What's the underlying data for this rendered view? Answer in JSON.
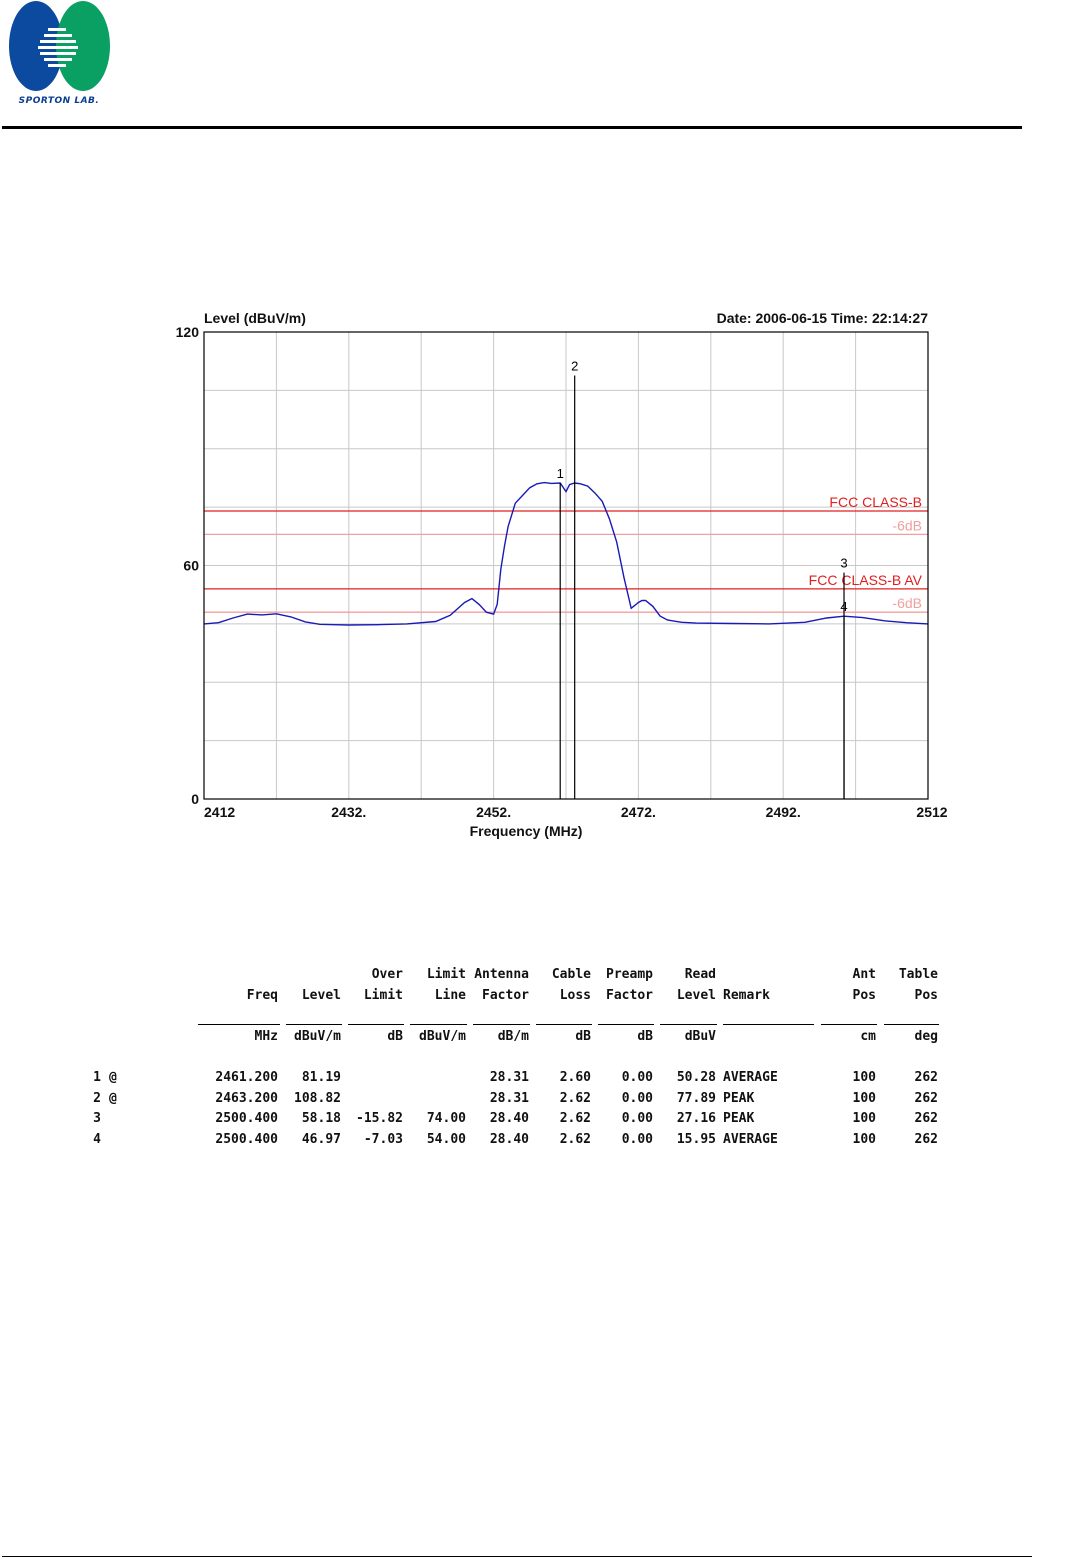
{
  "header": {
    "logo_text": "SPORTON LAB.",
    "logo_colors": {
      "left": "#0b4a9e",
      "right": "#0aa063"
    }
  },
  "chart_data": {
    "type": "line",
    "title_left": "Level (dBuV/m)",
    "title_right": "Date: 2006-06-15  Time: 22:14:27",
    "xlabel": "Frequency (MHz)",
    "ylabel": "Level (dBuV/m)",
    "xlim": [
      2412,
      2512
    ],
    "ylim": [
      0,
      120
    ],
    "x_ticks": [
      2412,
      2432,
      2452,
      2472,
      2492,
      2512
    ],
    "x_tick_labels": [
      "2412",
      "2432.",
      "2452.",
      "2472.",
      "2492.",
      "2512"
    ],
    "y_ticks": [
      0,
      60,
      120
    ],
    "y_tick_labels": [
      "0",
      "60",
      "120"
    ],
    "grid": true,
    "trace_color": "#1a1ab8",
    "series": [
      {
        "x": [
          2412,
          2414,
          2416,
          2418,
          2420,
          2422,
          2424,
          2426,
          2428,
          2430,
          2432,
          2436,
          2440,
          2444,
          2446,
          2448,
          2449,
          2450,
          2451,
          2452,
          2452.5,
          2453,
          2453.5,
          2454,
          2455,
          2456,
          2457,
          2458,
          2459,
          2460,
          2461.2,
          2462,
          2462.5,
          2463.2,
          2464,
          2465,
          2466,
          2467,
          2468,
          2469,
          2470,
          2471,
          2472,
          2472.5,
          2473,
          2474,
          2475,
          2476,
          2477,
          2478,
          2480,
          2485,
          2490,
          2495,
          2498,
          2500.4,
          2503,
          2506,
          2509,
          2512
        ],
        "y": [
          45,
          45.3,
          46.5,
          47.5,
          47.3,
          47.6,
          46.8,
          45.5,
          44.9,
          44.8,
          44.7,
          44.8,
          45,
          45.6,
          47.2,
          50.5,
          51.5,
          50,
          48,
          47.5,
          50,
          59,
          65,
          70,
          76,
          78,
          80,
          81,
          81.3,
          81.1,
          81.19,
          79,
          80.8,
          81.2,
          81,
          80.4,
          78.6,
          76.5,
          72,
          66,
          57,
          49,
          50.5,
          51,
          51,
          49.5,
          47,
          46,
          45.7,
          45.4,
          45.2,
          45.1,
          45,
          45.4,
          46.5,
          46.97,
          46.6,
          45.8,
          45.3,
          45
        ]
      }
    ],
    "limit_lines": [
      {
        "label": "FCC CLASS-B",
        "value": 74,
        "color": "#e02020"
      },
      {
        "label": "-6dB",
        "value": 68,
        "color": "#f0a0a0"
      },
      {
        "label": "FCC CLASS-B  AV",
        "value": 54,
        "color": "#e02020"
      },
      {
        "label": "-6dB",
        "value": 48,
        "color": "#f0a0a0"
      }
    ],
    "markers": [
      {
        "label": "1",
        "x": 2461.2,
        "y": 81.19
      },
      {
        "label": "2",
        "x": 2463.2,
        "y": 108.82
      },
      {
        "label": "3",
        "x": 2500.4,
        "y": 58.18
      },
      {
        "label": "4",
        "x": 2500.4,
        "y": 46.97
      }
    ]
  },
  "table": {
    "headers": {
      "row1": [
        "",
        "",
        "",
        "",
        "Over",
        "Limit",
        "Antenna",
        "Cable",
        "Preamp",
        "Read",
        "",
        "Ant",
        "Table"
      ],
      "row2": [
        "",
        "",
        "Freq",
        "Level",
        "Limit",
        "Line",
        "Factor",
        "Loss",
        "Factor",
        "Level",
        "Remark",
        "Pos",
        "Pos"
      ],
      "units": [
        "",
        "",
        "MHz",
        "dBuV/m",
        "dB",
        "dBuV/m",
        "dB/m",
        "dB",
        "dB",
        "dBuV",
        "",
        "cm",
        "deg"
      ]
    },
    "rows": [
      [
        "1",
        "@",
        "2461.200",
        "81.19",
        "",
        "",
        "28.31",
        "2.60",
        "0.00",
        "50.28",
        "AVERAGE",
        "100",
        "262"
      ],
      [
        "2",
        "@",
        "2463.200",
        "108.82",
        "",
        "",
        "28.31",
        "2.62",
        "0.00",
        "77.89",
        "PEAK",
        "100",
        "262"
      ],
      [
        "3",
        "",
        "2500.400",
        "58.18",
        "-15.82",
        "74.00",
        "28.40",
        "2.62",
        "0.00",
        "27.16",
        "PEAK",
        "100",
        "262"
      ],
      [
        "4",
        "",
        "2500.400",
        "46.97",
        "-7.03",
        "54.00",
        "28.40",
        "2.62",
        "0.00",
        "15.95",
        "AVERAGE",
        "100",
        "262"
      ]
    ]
  }
}
